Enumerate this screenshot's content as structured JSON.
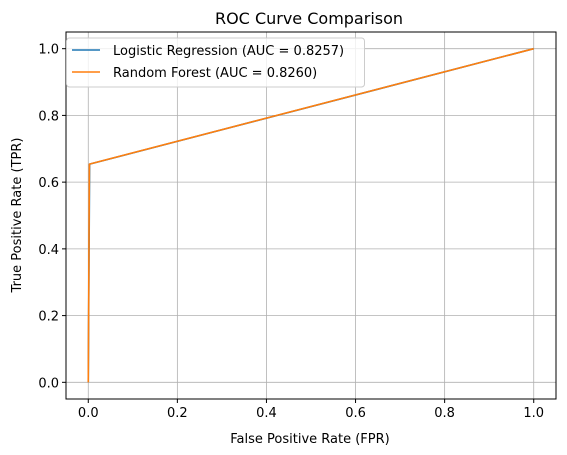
{
  "chart_data": {
    "type": "line",
    "title": "ROC Curve Comparison",
    "xlabel": "False Positive Rate (FPR)",
    "ylabel": "True Positive Rate (TPR)",
    "xlim": [
      -0.05,
      1.05
    ],
    "ylim": [
      -0.05,
      1.05
    ],
    "x_ticks": [
      "0.0",
      "0.2",
      "0.4",
      "0.6",
      "0.8",
      "1.0"
    ],
    "y_ticks": [
      "0.0",
      "0.2",
      "0.4",
      "0.6",
      "0.8",
      "1.0"
    ],
    "grid": true,
    "legend_position": "top-left",
    "series": [
      {
        "name": "Logistic Regression (AUC = 0.8257)",
        "color": "#1f77b4",
        "x": [
          0.0,
          0.003,
          1.0
        ],
        "y": [
          0.0,
          0.654,
          1.0
        ]
      },
      {
        "name": "Random Forest (AUC = 0.8260)",
        "color": "#ff7f0e",
        "x": [
          0.0,
          0.0025,
          1.0
        ],
        "y": [
          0.0,
          0.654,
          1.0
        ]
      }
    ]
  }
}
